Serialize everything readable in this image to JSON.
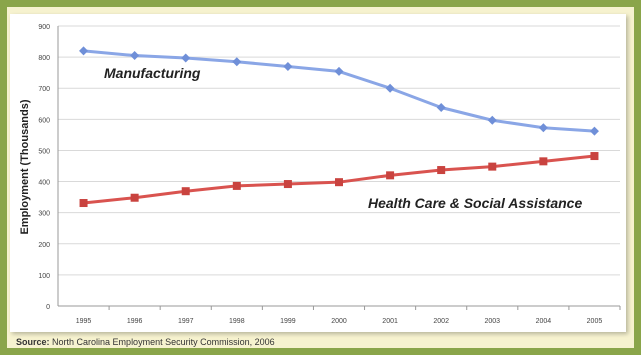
{
  "chart_data": {
    "type": "line",
    "x": [
      1995,
      1996,
      1997,
      1998,
      1999,
      2000,
      2001,
      2002,
      2003,
      2004,
      2005
    ],
    "series": [
      {
        "name": "Manufacturing",
        "values": [
          820,
          805,
          797,
          785,
          770,
          754,
          700,
          638,
          597,
          573,
          562
        ],
        "color": "#8aa6e6",
        "marker": "diamond"
      },
      {
        "name": "Health Care & Social Assistance",
        "values": [
          331,
          348,
          369,
          386,
          392,
          398,
          420,
          437,
          448,
          465,
          482
        ],
        "color": "#d9534f",
        "marker": "square"
      }
    ],
    "ylabel": "Employment (Thousands)",
    "xlabel": "",
    "ylim": [
      0,
      900
    ],
    "yticks": [
      0,
      100,
      200,
      300,
      400,
      500,
      600,
      700,
      800,
      900
    ],
    "grid": true,
    "legend": "inline labels near lines"
  },
  "source": {
    "label": "Source:",
    "text": "North Carolina Employment Security Commission, 2006"
  }
}
